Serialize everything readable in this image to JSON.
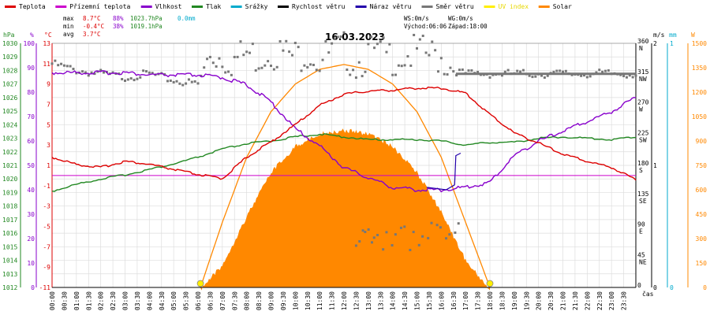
{
  "legend": [
    {
      "label": "Teplota",
      "color": "#dd0000"
    },
    {
      "label": "Přízemní teplota",
      "color": "#cc00cc"
    },
    {
      "label": "Vlhkost",
      "color": "#8800cc"
    },
    {
      "label": "Tlak",
      "color": "#228822"
    },
    {
      "label": "Srážky",
      "color": "#00aacc"
    },
    {
      "label": "Rychlost větru",
      "color": "#000000"
    },
    {
      "label": "Náraz větru",
      "color": "#2200aa"
    },
    {
      "label": "Směr větru",
      "color": "#777777"
    },
    {
      "label": "UV index",
      "color": "#ffee00"
    },
    {
      "label": "Solar",
      "color": "#ff8800"
    }
  ],
  "stats": {
    "max_label": "max",
    "max_temp": "8.7°C",
    "max_hum": "88%",
    "max_press": "1023.7hPa",
    "rain": "0.0mm",
    "min_label": "min",
    "min_temp": "-0.4°C",
    "min_hum": "38%",
    "min_press": "1019.1hPa",
    "avg_label": "avg",
    "avg_temp": "3.7°C",
    "ws": "WS:0m/s",
    "wg": "WG:0m/s",
    "sunrise": "Východ:06:06",
    "sunset": "Západ:18:00"
  },
  "title": "16.03.2023",
  "colors": {
    "temp": "#dd0000",
    "ground": "#cc00cc",
    "hum": "#8800cc",
    "press": "#228822",
    "rain": "#00aacc",
    "wind": "#000000",
    "gust": "#2200aa",
    "dir": "#777777",
    "uv": "#ffee00",
    "solar": "#ff8800",
    "grid": "#dddddd"
  },
  "axes": {
    "hpa": {
      "unit": "hPa",
      "ticks": [
        "1030",
        "1029",
        "1028",
        "1027",
        "1026",
        "1025",
        "1024",
        "1023",
        "1022",
        "1021",
        "1020",
        "1019",
        "1018",
        "1017",
        "1016",
        "1015",
        "1014",
        "1013",
        "1012"
      ]
    },
    "pct": {
      "unit": "%",
      "ticks": [
        "100",
        "90",
        "80",
        "70",
        "60",
        "50",
        "40",
        "30",
        "20",
        "10",
        "0"
      ]
    },
    "temp": {
      "unit": "°C",
      "ticks": [
        "13",
        "11",
        "9",
        "7",
        "5",
        "3",
        "1",
        "-1",
        "-3",
        "-5",
        "-7",
        "-9",
        "-11"
      ]
    },
    "dir": {
      "ticks": [
        {
          "deg": "360",
          "name": "N"
        },
        {
          "deg": "315",
          "name": "NW"
        },
        {
          "deg": "270",
          "name": "W"
        },
        {
          "deg": "225",
          "name": "SW"
        },
        {
          "deg": "180",
          "name": "S"
        },
        {
          "deg": "135",
          "name": "SE"
        },
        {
          "deg": "90",
          "name": "E"
        },
        {
          "deg": "45",
          "name": "NE"
        },
        {
          "deg": "0",
          "name": ""
        }
      ]
    },
    "ms": {
      "unit": "m/s",
      "ticks": [
        "2",
        "1",
        "0"
      ]
    },
    "mm": {
      "unit": "mm",
      "ticks": [
        "1",
        "0"
      ]
    },
    "w": {
      "unit": "W",
      "ticks": [
        "1500",
        "1350",
        "1200",
        "1050",
        "900",
        "750",
        "600",
        "450",
        "300",
        "150",
        "0"
      ]
    },
    "time_unit": "čas",
    "times": [
      "00:00",
      "00:30",
      "01:00",
      "01:30",
      "02:00",
      "02:30",
      "03:00",
      "03:30",
      "04:00",
      "04:30",
      "05:00",
      "05:30",
      "06:00",
      "06:30",
      "07:00",
      "07:30",
      "08:00",
      "08:30",
      "09:00",
      "09:30",
      "10:00",
      "10:30",
      "11:00",
      "11:30",
      "12:00",
      "12:30",
      "13:00",
      "13:30",
      "14:00",
      "14:30",
      "15:00",
      "15:30",
      "16:00",
      "16:30",
      "17:00",
      "17:30",
      "18:00",
      "18:30",
      "19:00",
      "19:30",
      "20:00",
      "20:30",
      "21:00",
      "21:30",
      "22:00",
      "22:30",
      "23:00",
      "23:30"
    ]
  },
  "chart_data": {
    "type": "line",
    "title": "16.03.2023",
    "x_unit": "hour",
    "temperature": {
      "name": "Teplota",
      "unit": "°C",
      "x": [
        0,
        1,
        2,
        3,
        4,
        5,
        6,
        7,
        8,
        9,
        10,
        11,
        12,
        13,
        14,
        15,
        16,
        17,
        18,
        19,
        20,
        21,
        22,
        23,
        24
      ],
      "y": [
        1.8,
        1.1,
        0.8,
        1.4,
        1.1,
        0.6,
        0.1,
        -0.3,
        1.8,
        3.3,
        5.0,
        6.9,
        8.0,
        8.3,
        8.4,
        8.6,
        8.6,
        8.1,
        6.0,
        4.2,
        3.2,
        2.1,
        1.4,
        0.8,
        -0.4
      ]
    },
    "humidity": {
      "name": "Vlhkost",
      "unit": "%",
      "x": [
        0,
        1,
        2,
        3,
        4,
        5,
        6,
        7,
        8,
        9,
        10,
        11,
        12,
        13,
        14,
        15,
        16,
        17,
        18,
        19,
        20,
        21,
        22,
        23,
        24
      ],
      "y": [
        88,
        88,
        88,
        88,
        87,
        87,
        87,
        86,
        83,
        76,
        65,
        58,
        49,
        45,
        41,
        40,
        40,
        41,
        43,
        54,
        60,
        64,
        68,
        72,
        78
      ]
    },
    "pressure": {
      "name": "Tlak",
      "unit": "hPa",
      "x": [
        0,
        1,
        2,
        3,
        4,
        5,
        6,
        7,
        8,
        9,
        10,
        11,
        12,
        13,
        14,
        15,
        16,
        17,
        18,
        19,
        20,
        21,
        22,
        23,
        24
      ],
      "y": [
        1019.1,
        1019.6,
        1020.0,
        1020.3,
        1020.7,
        1021.1,
        1021.6,
        1022.2,
        1022.6,
        1022.8,
        1023.1,
        1023.3,
        1023.1,
        1022.9,
        1022.9,
        1022.9,
        1022.8,
        1022.5,
        1022.7,
        1022.7,
        1023.0,
        1023.1,
        1023.0,
        1022.9,
        1023.1
      ]
    },
    "ground_temperature": {
      "name": "Přízemní teplota",
      "unit": "°C",
      "value": 0.0
    },
    "solar": {
      "name": "Solar",
      "unit": "W",
      "x": [
        6.1,
        7,
        8,
        9,
        10,
        11,
        12,
        13,
        14,
        15,
        16,
        17,
        18
      ],
      "y": [
        0,
        150,
        450,
        720,
        880,
        960,
        980,
        960,
        880,
        720,
        480,
        180,
        0
      ]
    },
    "solar_max": {
      "name": "Solar",
      "unit": "W",
      "x": [
        6.1,
        7,
        8,
        9,
        10,
        11,
        12,
        13,
        14,
        15,
        16,
        17,
        18
      ],
      "y": [
        0,
        400,
        800,
        1080,
        1250,
        1340,
        1370,
        1340,
        1250,
        1080,
        800,
        400,
        0
      ]
    },
    "wind_direction": {
      "name": "Směr větru",
      "unit": "°",
      "x": [
        0,
        0.5,
        1,
        2,
        3,
        4,
        5,
        6,
        6.5,
        7,
        7.5,
        8,
        8.5,
        9,
        9.5,
        10,
        10.5,
        11,
        11.5,
        12,
        12.5,
        13,
        14,
        15,
        16,
        16.5,
        17,
        18,
        19,
        20,
        21,
        22,
        23,
        24
      ],
      "y": [
        330,
        325,
        320,
        315,
        310,
        315,
        305,
        300,
        345,
        340,
        335,
        345,
        340,
        350,
        345,
        340,
        350,
        335,
        345,
        350,
        330,
        345,
        340,
        345,
        340,
        320,
        315,
        315,
        315,
        315,
        315,
        315,
        315,
        315
      ]
    },
    "wind_speed": {
      "name": "Rychlost větru",
      "unit": "m/s",
      "value": 0
    },
    "ylim_temp": [
      -11,
      13
    ],
    "ylim_hum": [
      0,
      100
    ],
    "ylim_press": [
      1012,
      1030
    ],
    "ylim_solar": [
      0,
      1500
    ]
  }
}
